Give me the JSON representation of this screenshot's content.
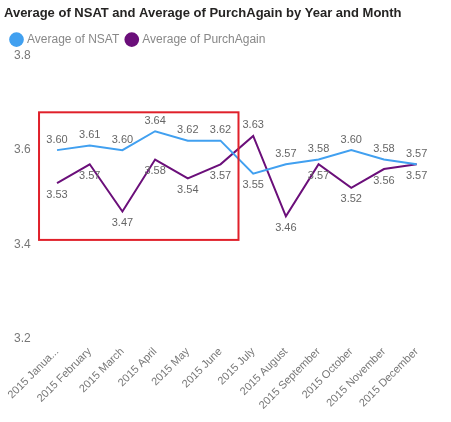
{
  "chart_data": {
    "type": "line",
    "title": "Average of NSAT and Average of PurchAgain by Year and Month",
    "categories": [
      "2015 Janua...",
      "2015 February",
      "2015 March",
      "2015 April",
      "2015 May",
      "2015 June",
      "2015 July",
      "2015 August",
      "2015 September",
      "2015 October",
      "2015 November",
      "2015 December"
    ],
    "series": [
      {
        "name": "Average of NSAT",
        "color": "#41A0F0",
        "marker": "none",
        "values": [
          3.6,
          3.61,
          3.6,
          3.64,
          3.62,
          3.62,
          3.55,
          3.57,
          3.58,
          3.6,
          3.58,
          3.57
        ],
        "value_labels": [
          "3.60",
          "3.61",
          "3.60",
          "3.64",
          "3.62",
          "3.62",
          "3.55",
          "3.57",
          "3.58",
          "3.60",
          "3.58",
          "3.57"
        ]
      },
      {
        "name": "Average of PurchAgain",
        "color": "#6B0F7A",
        "marker": "none",
        "values": [
          3.53,
          3.57,
          3.47,
          3.58,
          3.54,
          3.57,
          3.63,
          3.46,
          3.57,
          3.52,
          3.56,
          3.57
        ],
        "value_labels": [
          "3.53",
          "3.57",
          "3.47",
          "3.58",
          "3.54",
          "3.57",
          "3.63",
          "3.46",
          "3.57",
          "3.52",
          "3.56",
          "3.57"
        ]
      }
    ],
    "ylim": [
      3.2,
      3.8
    ],
    "yticks": [
      3.2,
      3.4,
      3.6,
      3.8
    ],
    "grid": false,
    "legend": "top-left",
    "data_labels": true
  }
}
